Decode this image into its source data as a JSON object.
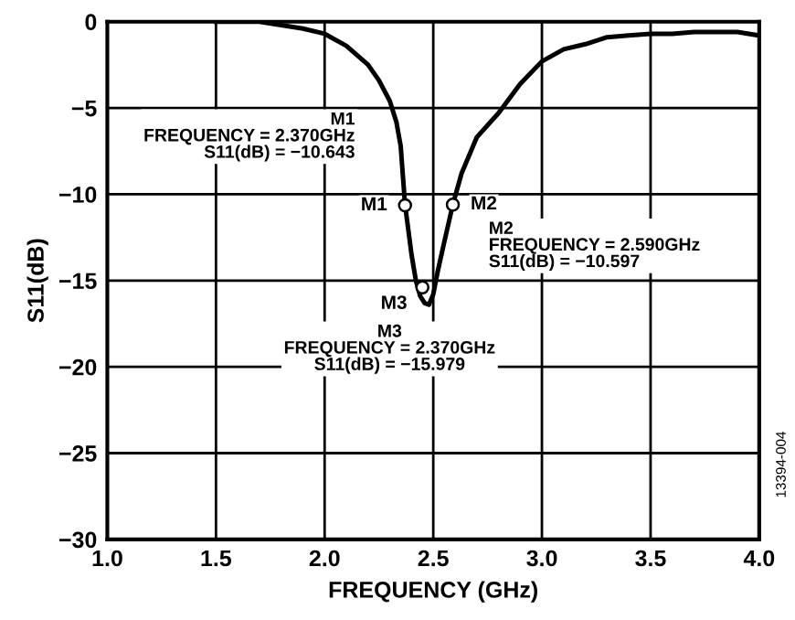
{
  "chart_data": {
    "type": "line",
    "xlabel": "FREQUENCY (GHz)",
    "ylabel": "S11(dB)",
    "xlim": [
      1.0,
      4.0
    ],
    "xticks": [
      {
        "value": 1.0,
        "label": "1.0"
      },
      {
        "value": 1.5,
        "label": "1.5"
      },
      {
        "value": 2.0,
        "label": "2.0"
      },
      {
        "value": 2.5,
        "label": "2.5"
      },
      {
        "value": 3.0,
        "label": "3.0"
      },
      {
        "value": 3.5,
        "label": "3.5"
      },
      {
        "value": 4.0,
        "label": "4.0"
      }
    ],
    "ylim": [
      -30,
      0
    ],
    "yticks": [
      {
        "value": -30,
        "label": "−30"
      },
      {
        "value": -25,
        "label": "−25"
      },
      {
        "value": -20,
        "label": "−20"
      },
      {
        "value": -15,
        "label": "−15"
      },
      {
        "value": -10,
        "label": "−10"
      },
      {
        "value": -5,
        "label": "−5"
      },
      0
    ],
    "grid": true,
    "marker": "none",
    "line_style": "solid",
    "series": [
      {
        "color": "#000000",
        "x": [
          1.5,
          1.6,
          1.7,
          1.8,
          1.9,
          2.0,
          2.1,
          2.2,
          2.25,
          2.3,
          2.33,
          2.35,
          2.37,
          2.4,
          2.42,
          2.44,
          2.46,
          2.48,
          2.5,
          2.52,
          2.55,
          2.59,
          2.63,
          2.7,
          2.8,
          2.9,
          3.0,
          3.1,
          3.2,
          3.3,
          3.4,
          3.5,
          3.6,
          3.7,
          3.8,
          3.9,
          4.0
        ],
        "values": [
          0,
          0,
          0,
          -0.2,
          -0.4,
          -0.7,
          -1.4,
          -2.5,
          -3.4,
          -4.6,
          -5.8,
          -7.2,
          -10.6,
          -13.5,
          -15.0,
          -15.9,
          -16.3,
          -16.4,
          -15.8,
          -14.5,
          -12.8,
          -10.6,
          -8.8,
          -6.7,
          -5.3,
          -3.6,
          -2.3,
          -1.6,
          -1.3,
          -0.9,
          -0.8,
          -0.7,
          -0.7,
          -0.6,
          -0.6,
          -0.6,
          -0.8
        ]
      },
      {
        "type": "scatter",
        "marker": "circle",
        "color": "#000000",
        "x": [
          2.37,
          2.59,
          2.45
        ],
        "values": [
          -10.643,
          -10.597,
          -15.4
        ]
      }
    ],
    "annotations": [
      {
        "text": "M1",
        "x": 2.37,
        "y": -10.643
      },
      {
        "text": "M2",
        "x": 2.59,
        "y": -10.597
      },
      {
        "text": "M3",
        "x": 2.45,
        "y": -15.4
      },
      "M1\nFREQUENCY = 2.370GHz\nS11(dB) = −10.643",
      "M2\nFREQUENCY = 2.590GHz\nS11(dB) = −10.597",
      "M3\nFREQUENCY = 2.370GHz\nS11(dB) = −15.979",
      "13394-004"
    ]
  }
}
